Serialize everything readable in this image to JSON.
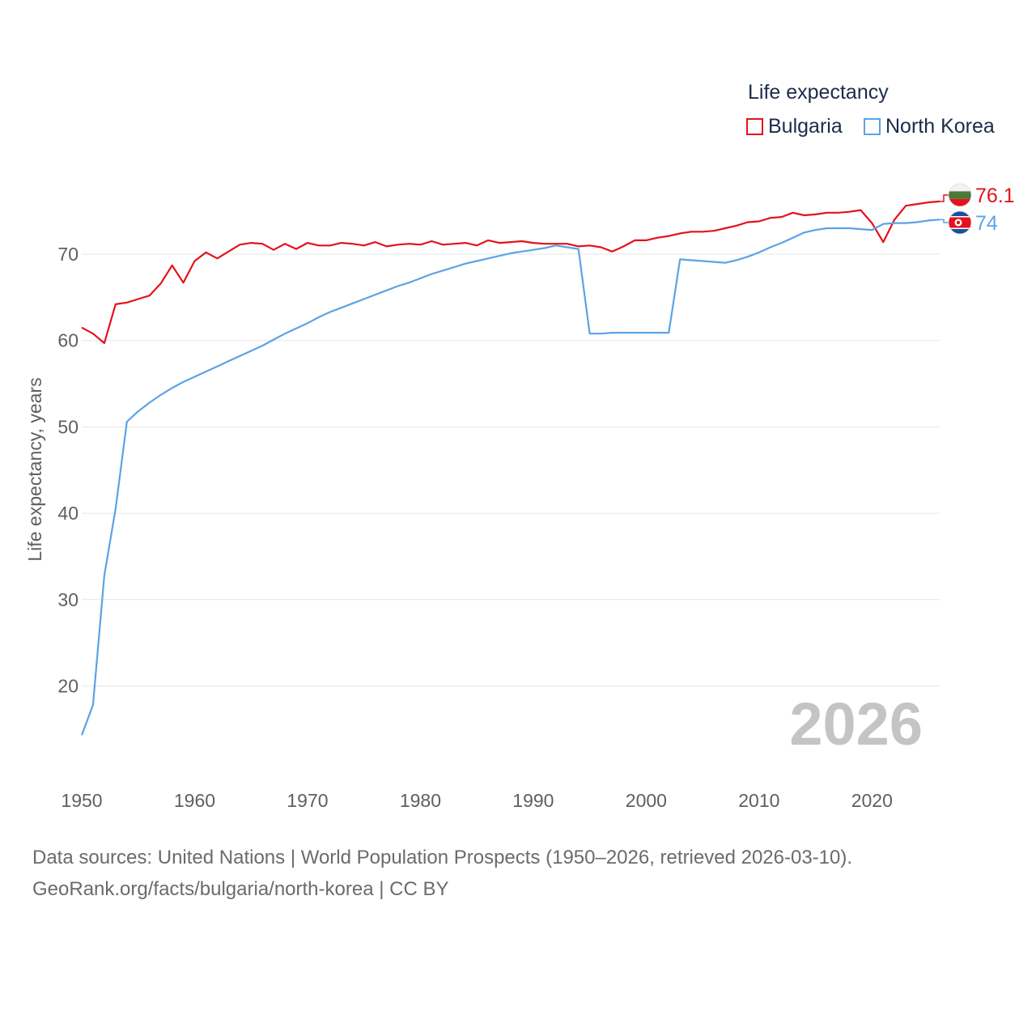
{
  "legend": {
    "title": "Life expectancy",
    "items": [
      {
        "label": "Bulgaria",
        "color": "#e3121b"
      },
      {
        "label": "North Korea",
        "color": "#5ba3e6"
      }
    ]
  },
  "watermark_year": "2026",
  "end_labels": {
    "bulgaria": "76.1",
    "north_korea": "74"
  },
  "source": {
    "line1": "Data sources: United Nations | World Population Prospects (1950–2026, retrieved 2026-03-10).",
    "line2": "GeoRank.org/facts/bulgaria/north-korea | CC BY"
  },
  "chart_data": {
    "type": "line",
    "title": "Life expectancy",
    "xlabel": "",
    "ylabel": "Life expectancy, years",
    "xlim": [
      1950,
      2026
    ],
    "ylim": [
      14,
      80
    ],
    "x_ticks": [
      1950,
      1960,
      1970,
      1980,
      1990,
      2000,
      2010,
      2020
    ],
    "y_ticks": [
      20,
      30,
      40,
      50,
      60,
      70
    ],
    "grid": true,
    "x": [
      1950,
      1951,
      1952,
      1953,
      1954,
      1955,
      1956,
      1957,
      1958,
      1959,
      1960,
      1961,
      1962,
      1963,
      1964,
      1965,
      1966,
      1967,
      1968,
      1969,
      1970,
      1971,
      1972,
      1973,
      1974,
      1975,
      1976,
      1977,
      1978,
      1979,
      1980,
      1981,
      1982,
      1983,
      1984,
      1985,
      1986,
      1987,
      1988,
      1989,
      1990,
      1991,
      1992,
      1993,
      1994,
      1995,
      1996,
      1997,
      1998,
      1999,
      2000,
      2001,
      2002,
      2003,
      2004,
      2005,
      2006,
      2007,
      2008,
      2009,
      2010,
      2011,
      2012,
      2013,
      2014,
      2015,
      2016,
      2017,
      2018,
      2019,
      2020,
      2021,
      2022,
      2023,
      2024,
      2025,
      2026
    ],
    "series": [
      {
        "name": "Bulgaria",
        "color": "#e3121b",
        "values": [
          61.5,
          60.8,
          59.7,
          64.2,
          64.4,
          64.8,
          65.2,
          66.6,
          68.7,
          66.7,
          69.2,
          70.2,
          69.5,
          70.3,
          71.1,
          71.3,
          71.2,
          70.5,
          71.2,
          70.6,
          71.3,
          71.0,
          71.0,
          71.3,
          71.2,
          71.0,
          71.4,
          70.9,
          71.1,
          71.2,
          71.1,
          71.5,
          71.1,
          71.2,
          71.3,
          71.0,
          71.6,
          71.3,
          71.4,
          71.5,
          71.3,
          71.2,
          71.2,
          71.2,
          70.9,
          71.0,
          70.8,
          70.3,
          70.9,
          71.6,
          71.6,
          71.9,
          72.1,
          72.4,
          72.6,
          72.6,
          72.7,
          73.0,
          73.3,
          73.7,
          73.8,
          74.2,
          74.3,
          74.8,
          74.5,
          74.6,
          74.8,
          74.8,
          74.9,
          75.1,
          73.6,
          71.4,
          74.0,
          75.6,
          75.8,
          76.0,
          76.1
        ]
      },
      {
        "name": "North Korea",
        "color": "#5ba3e6",
        "values": [
          14.3,
          17.8,
          32.8,
          40.5,
          50.6,
          51.8,
          52.8,
          53.7,
          54.5,
          55.2,
          55.8,
          56.4,
          57.0,
          57.6,
          58.2,
          58.8,
          59.4,
          60.1,
          60.8,
          61.4,
          62.0,
          62.7,
          63.3,
          63.8,
          64.3,
          64.8,
          65.3,
          65.8,
          66.3,
          66.7,
          67.2,
          67.7,
          68.1,
          68.5,
          68.9,
          69.2,
          69.5,
          69.8,
          70.1,
          70.3,
          70.5,
          70.7,
          71.0,
          70.8,
          70.6,
          60.8,
          60.8,
          60.9,
          60.9,
          60.9,
          60.9,
          60.9,
          60.9,
          69.4,
          69.3,
          69.2,
          69.1,
          69.0,
          69.3,
          69.7,
          70.2,
          70.8,
          71.3,
          71.9,
          72.5,
          72.8,
          73.0,
          73.0,
          73.0,
          72.9,
          72.8,
          73.5,
          73.6,
          73.6,
          73.7,
          73.9,
          74.0
        ]
      }
    ]
  }
}
